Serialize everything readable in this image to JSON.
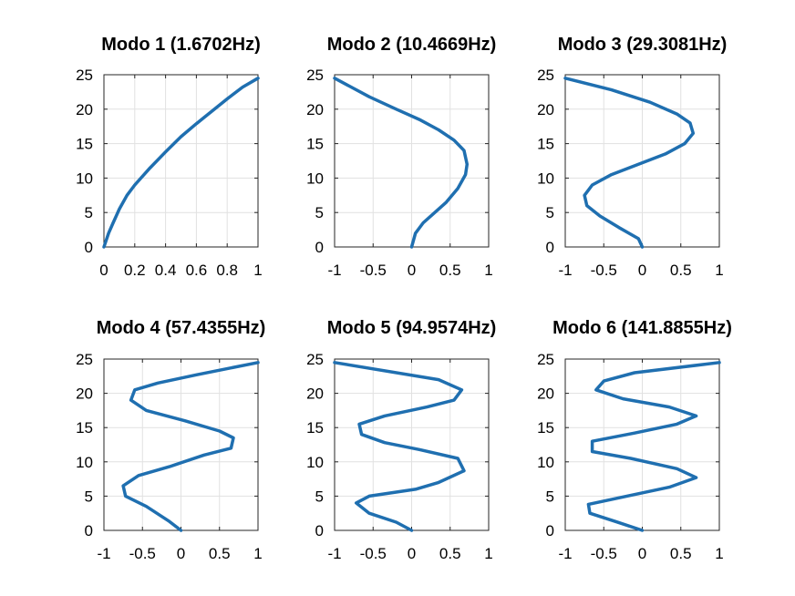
{
  "figure": {
    "line_color": "#1f6fb0",
    "grid": true
  },
  "chart_data": [
    {
      "type": "line",
      "title": "Modo 1 (1.6702Hz)",
      "xlabel": "",
      "ylabel": "",
      "xlim": [
        0,
        1
      ],
      "ylim": [
        0,
        25
      ],
      "xticks": [
        0,
        0.2,
        0.4,
        0.6,
        0.8,
        1
      ],
      "xticklabels": [
        "0",
        "0.2",
        "0.4",
        "0.6",
        "0.8",
        "1"
      ],
      "yticks": [
        0,
        5,
        10,
        15,
        20,
        25
      ],
      "yticklabels": [
        "0",
        "5",
        "10",
        "15",
        "20",
        "25"
      ],
      "series": [
        {
          "x": [
            0,
            0.03,
            0.06,
            0.1,
            0.15,
            0.2,
            0.3,
            0.4,
            0.5,
            0.6,
            0.7,
            0.8,
            0.9,
            1.0
          ],
          "y": [
            0,
            2,
            3.5,
            5.5,
            7.5,
            9,
            11.5,
            13.8,
            16,
            17.9,
            19.7,
            21.5,
            23.2,
            24.5
          ]
        }
      ]
    },
    {
      "type": "line",
      "title": "Modo 2 (10.4669Hz)",
      "xlabel": "",
      "ylabel": "",
      "xlim": [
        -1,
        1
      ],
      "ylim": [
        0,
        25
      ],
      "xticks": [
        -1,
        -0.5,
        0,
        0.5,
        1
      ],
      "xticklabels": [
        "-1",
        "-0.5",
        "0",
        "0.5",
        "1"
      ],
      "yticks": [
        0,
        5,
        10,
        15,
        20,
        25
      ],
      "yticklabels": [
        "0",
        "5",
        "10",
        "15",
        "20",
        "25"
      ],
      "series": [
        {
          "x": [
            0,
            0.05,
            0.15,
            0.3,
            0.45,
            0.6,
            0.7,
            0.72,
            0.68,
            0.55,
            0.35,
            0.1,
            -0.2,
            -0.55,
            -1.0
          ],
          "y": [
            0,
            2,
            3.5,
            5,
            6.5,
            8.5,
            10.5,
            12,
            14,
            15.5,
            17,
            18.5,
            20,
            21.8,
            24.5
          ]
        }
      ]
    },
    {
      "type": "line",
      "title": "Modo 3 (29.3081Hz)",
      "xlabel": "",
      "ylabel": "",
      "xlim": [
        -1,
        1
      ],
      "ylim": [
        0,
        25
      ],
      "xticks": [
        -1,
        -0.5,
        0,
        0.5,
        1
      ],
      "xticklabels": [
        "-1",
        "-0.5",
        "0",
        "0.5",
        "1"
      ],
      "yticks": [
        0,
        5,
        10,
        15,
        20,
        25
      ],
      "yticklabels": [
        "0",
        "5",
        "10",
        "15",
        "20",
        "25"
      ],
      "series": [
        {
          "x": [
            0,
            -0.05,
            -0.3,
            -0.55,
            -0.72,
            -0.75,
            -0.65,
            -0.4,
            -0.05,
            0.3,
            0.55,
            0.66,
            0.62,
            0.45,
            0.1,
            -0.4,
            -1.0
          ],
          "y": [
            0,
            1.2,
            2.8,
            4.5,
            6,
            7.5,
            9,
            10.5,
            12,
            13.5,
            15,
            16.5,
            18,
            19.3,
            21,
            22.8,
            24.5
          ]
        }
      ]
    },
    {
      "type": "line",
      "title": "Modo 4 (57.4355Hz)",
      "xlabel": "",
      "ylabel": "",
      "xlim": [
        -1,
        1
      ],
      "ylim": [
        0,
        25
      ],
      "xticks": [
        -1,
        -0.5,
        0,
        0.5,
        1
      ],
      "xticklabels": [
        "-1",
        "-0.5",
        "0",
        "0.5",
        "1"
      ],
      "yticks": [
        0,
        5,
        10,
        15,
        20,
        25
      ],
      "yticklabels": [
        "0",
        "5",
        "10",
        "15",
        "20",
        "25"
      ],
      "series": [
        {
          "x": [
            0,
            -0.15,
            -0.45,
            -0.72,
            -0.75,
            -0.55,
            -0.15,
            0.3,
            0.65,
            0.68,
            0.5,
            0.05,
            -0.45,
            -0.65,
            -0.6,
            -0.3,
            0.2,
            1.0
          ],
          "y": [
            0,
            1.3,
            3.5,
            5,
            6.5,
            8,
            9.3,
            11,
            12,
            13.5,
            14.5,
            16,
            17.5,
            19,
            20.5,
            21.5,
            22.7,
            24.5
          ]
        }
      ]
    },
    {
      "type": "line",
      "title": "Modo 5 (94.9574Hz)",
      "xlabel": "",
      "ylabel": "",
      "xlim": [
        -1,
        1
      ],
      "ylim": [
        0,
        25
      ],
      "xticks": [
        -1,
        -0.5,
        0,
        0.5,
        1
      ],
      "xticklabels": [
        "-1",
        "-0.5",
        "0",
        "0.5",
        "1"
      ],
      "yticks": [
        0,
        5,
        10,
        15,
        20,
        25
      ],
      "yticklabels": [
        "0",
        "5",
        "10",
        "15",
        "20",
        "25"
      ],
      "series": [
        {
          "x": [
            0,
            -0.2,
            -0.55,
            -0.72,
            -0.55,
            0.05,
            0.35,
            0.68,
            0.6,
            0.1,
            -0.35,
            -0.65,
            -0.68,
            -0.35,
            0.2,
            0.55,
            0.65,
            0.35,
            -1.0
          ],
          "y": [
            0,
            1.2,
            2.5,
            4,
            5,
            6,
            7,
            8.7,
            10.5,
            11.8,
            12.8,
            14,
            15.5,
            16.7,
            18,
            19,
            20.5,
            22,
            24.5
          ]
        }
      ]
    },
    {
      "type": "line",
      "title": "Modo 6 (141.8855Hz)",
      "xlabel": "",
      "ylabel": "",
      "xlim": [
        -1,
        1
      ],
      "ylim": [
        0,
        25
      ],
      "xticks": [
        -1,
        -0.5,
        0,
        0.5,
        1
      ],
      "xticklabels": [
        "-1",
        "-0.5",
        "0",
        "0.5",
        "1"
      ],
      "yticks": [
        0,
        5,
        10,
        15,
        20,
        25
      ],
      "yticklabels": [
        "0",
        "5",
        "10",
        "15",
        "20",
        "25"
      ],
      "series": [
        {
          "x": [
            0,
            -0.35,
            -0.68,
            -0.7,
            -0.2,
            0.35,
            0.7,
            0.45,
            -0.15,
            -0.65,
            -0.65,
            -0.1,
            0.45,
            0.7,
            0.35,
            -0.25,
            -0.6,
            -0.5,
            -0.1,
            1.0
          ],
          "y": [
            0,
            1.3,
            2.5,
            3.8,
            5,
            6.3,
            7.7,
            9,
            10.5,
            11.5,
            13,
            14.2,
            15.5,
            16.7,
            18,
            19.2,
            20.5,
            21.8,
            23,
            24.5
          ]
        }
      ]
    }
  ]
}
